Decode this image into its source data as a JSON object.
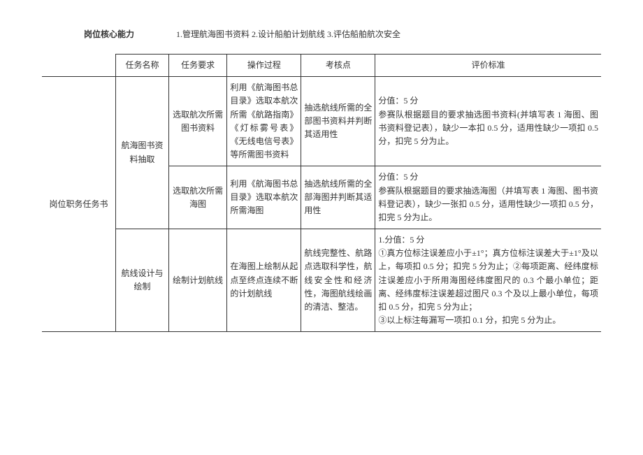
{
  "header": {
    "label": "岗位核心能力",
    "content": "1.管理航海图书资料 2.设计船舶计划航线 3.评估船舶航次安全"
  },
  "columns": {
    "section": "岗位职务任务书",
    "task_name": "任务名称",
    "task_req": "任务要求",
    "operation": "操作过程",
    "checkpoint": "考核点",
    "criteria": "评价标准"
  },
  "rows": [
    {
      "task_name": "航海图书资料抽取",
      "sub": [
        {
          "task_req": "选取航次所需图书资料",
          "operation": "利用《航海图书总目录》选取本航次所需《航路指南》《灯标雾号表》《无线电信号表》等所需图书资料",
          "checkpoint": "抽选航线所需的全部图书资料并判断其适用性",
          "criteria": "分值：5 分\n参赛队根据题目的要求抽选图书资料(并填写表 1 海图、图书资料登记表），缺少一本扣 0.5 分，适用性缺少一项扣 0.5 分，扣完 5 分为止。"
        },
        {
          "task_req": "选取航次所需海图",
          "operation": "利用《航海图书总目录》选取本航次所需海图",
          "checkpoint": "抽选航线所需的全部海图并判断其适用性",
          "criteria": "分值：5 分\n参赛队根据题目的要求抽选海图（并填写表 1 海图、图书资料登记表），缺少一张扣 0.5 分，适用性缺少一项扣 0.5 分，扣完 5 分为止。"
        }
      ]
    },
    {
      "task_name": "航线设计与绘制",
      "sub": [
        {
          "task_req": "绘制计划航线",
          "operation": "在海图上绘制从起点至终点连续不断的计划航线",
          "checkpoint": "航线完整性、航路点选取科学性，航线安全性和经济性，海图航线绘画的清洁、整洁。",
          "criteria": "1.分值：5 分\n①真方位标注误差应小于±1°；真方位标注误差大于±1°及以上，每项扣 0.5 分；扣完 5 分为止；②每项距离、经纬度标注误差应小于所用海图经纬度图尺的 0.3 个最小单位；距离、经纬度标注误差超过图尺 0.3 个及以上最小单位，每项扣 0.5 分，扣完 5 分为止；\n③以上标注每漏写一项扣 0.1 分，扣完 5 分为止。"
        }
      ]
    }
  ]
}
